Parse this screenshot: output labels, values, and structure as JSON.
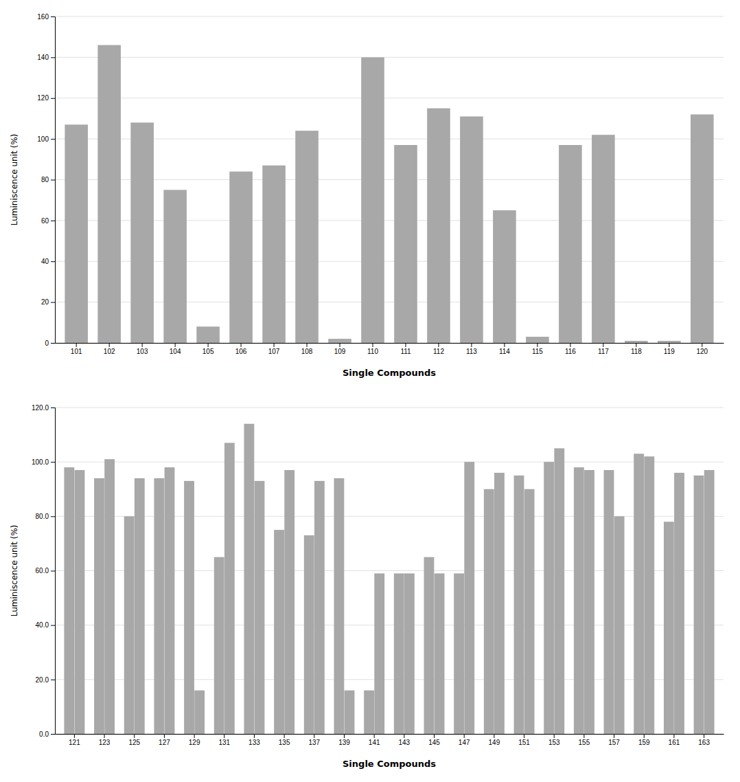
{
  "chart_data": [
    {
      "type": "bar",
      "categories": [
        "101",
        "102",
        "103",
        "104",
        "105",
        "106",
        "107",
        "108",
        "109",
        "110",
        "111",
        "112",
        "113",
        "114",
        "115",
        "116",
        "117",
        "118",
        "119",
        "120"
      ],
      "values": [
        107,
        146,
        108,
        75,
        8,
        84,
        87,
        104,
        2,
        140,
        97,
        115,
        111,
        65,
        3,
        97,
        102,
        1,
        1,
        112
      ],
      "color": "#a8a8a8",
      "xlabel": "Single Compounds",
      "ylabel": "Luminiscence unit (%)",
      "ylim": [
        0,
        160
      ],
      "yticks": [
        0,
        20,
        40,
        60,
        80,
        100,
        120,
        140,
        160
      ],
      "grid": true
    },
    {
      "type": "bar",
      "categories": [
        "121",
        "123",
        "125",
        "127",
        "129",
        "131",
        "133",
        "135",
        "137",
        "139",
        "141",
        "143",
        "145",
        "147",
        "149",
        "151",
        "153",
        "155",
        "157",
        "159",
        "161",
        "163"
      ],
      "series": [
        {
          "color": "#a8a8a8",
          "values": [
            98,
            94,
            80,
            94,
            93,
            65,
            114,
            75,
            73,
            94,
            16,
            59,
            65,
            59,
            90,
            95,
            100,
            98,
            97,
            103,
            78,
            95
          ]
        },
        {
          "color": "#a8a8a8",
          "values": [
            97,
            101,
            94,
            98,
            16,
            107,
            93,
            97,
            93,
            16,
            59,
            59,
            59,
            100,
            96,
            90,
            105,
            97,
            80,
            102,
            96,
            97
          ]
        }
      ],
      "xlabel": "Single Compounds",
      "ylabel": "Luminiscence unit (%)",
      "ylim": [
        0,
        120
      ],
      "yticks": [
        {
          "value": 0,
          "label": "0.0"
        },
        {
          "value": 20,
          "label": "20.0"
        },
        {
          "value": 40,
          "label": "40.0"
        },
        {
          "value": 60,
          "label": "60.0"
        },
        {
          "value": 80,
          "label": "80.0"
        },
        {
          "value": 100,
          "label": "100.0"
        },
        {
          "value": 120,
          "label": "120.0"
        }
      ],
      "grid": true
    }
  ]
}
